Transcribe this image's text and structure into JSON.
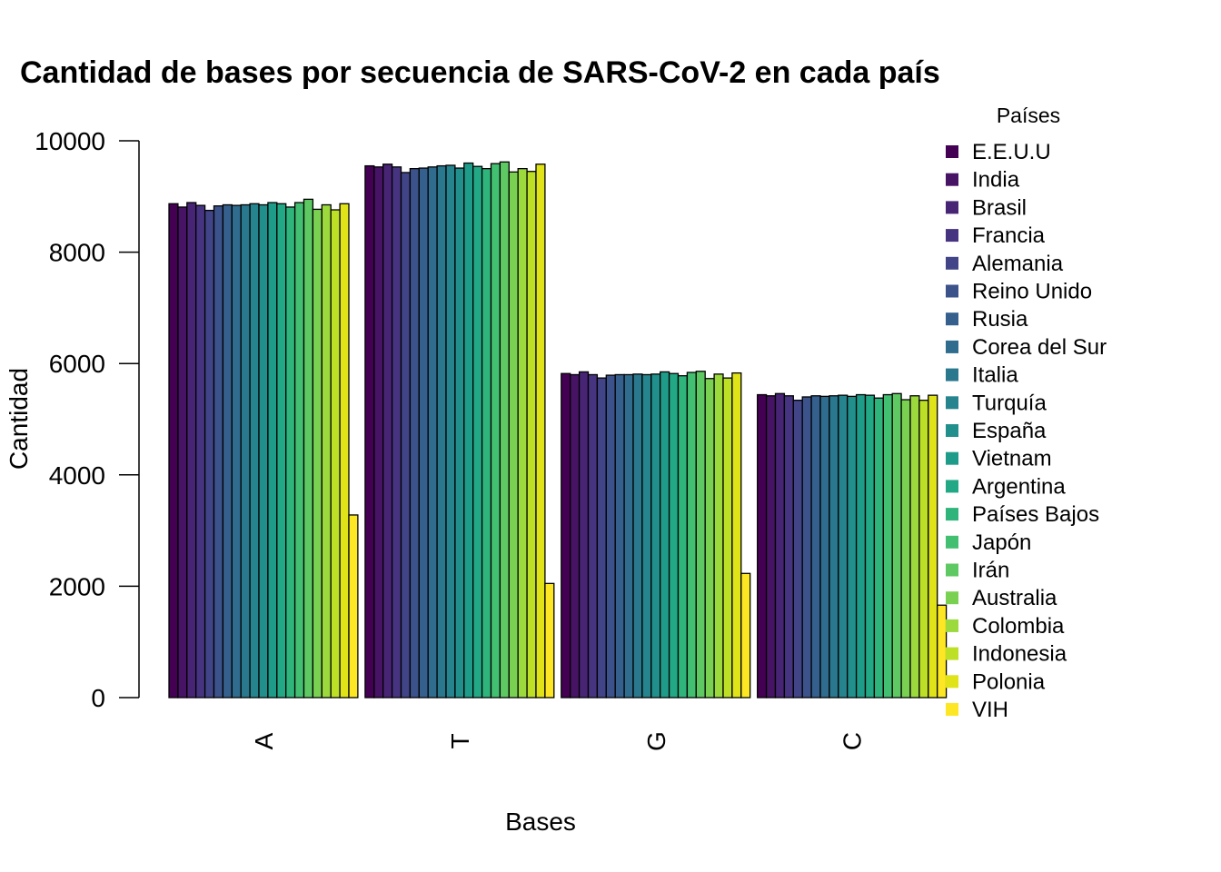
{
  "chart_data": {
    "type": "bar",
    "title": "Cantidad de bases por secuencia de SARS-CoV-2 en cada país",
    "xlabel": "Bases",
    "ylabel": "Cantidad",
    "ylim": [
      0,
      10000
    ],
    "yticks": [
      "0",
      "2000",
      "4000",
      "6000",
      "8000",
      "10000"
    ],
    "categories": [
      "A",
      "T",
      "G",
      "C"
    ],
    "legend_title": "Países",
    "legend_position": "right",
    "grid": false,
    "series": [
      {
        "name": "E.E.U.U",
        "color": "#440154",
        "values": [
          8870,
          9550,
          5820,
          5440
        ]
      },
      {
        "name": "India",
        "color": "#471365",
        "values": [
          8810,
          9530,
          5800,
          5420
        ]
      },
      {
        "name": "Brasil",
        "color": "#482475",
        "values": [
          8890,
          9580,
          5850,
          5460
        ]
      },
      {
        "name": "Francia",
        "color": "#463480",
        "values": [
          8840,
          9530,
          5800,
          5420
        ]
      },
      {
        "name": "Alemania",
        "color": "#414487",
        "values": [
          8750,
          9430,
          5740,
          5340
        ]
      },
      {
        "name": "Reino Unido",
        "color": "#3B528B",
        "values": [
          8830,
          9500,
          5790,
          5400
        ]
      },
      {
        "name": "Rusia",
        "color": "#355F8D",
        "values": [
          8850,
          9510,
          5800,
          5420
        ]
      },
      {
        "name": "Corea del Sur",
        "color": "#2F6C8E",
        "values": [
          8840,
          9530,
          5800,
          5410
        ]
      },
      {
        "name": "Italia",
        "color": "#2A788E",
        "values": [
          8850,
          9550,
          5810,
          5420
        ]
      },
      {
        "name": "Turquía",
        "color": "#25848E",
        "values": [
          8870,
          9560,
          5800,
          5430
        ]
      },
      {
        "name": "España",
        "color": "#21908C",
        "values": [
          8850,
          9510,
          5810,
          5410
        ]
      },
      {
        "name": "Vietnam",
        "color": "#1E9C89",
        "values": [
          8890,
          9600,
          5850,
          5440
        ]
      },
      {
        "name": "Argentina",
        "color": "#22A884",
        "values": [
          8870,
          9540,
          5820,
          5430
        ]
      },
      {
        "name": "Países Bajos",
        "color": "#2FB47C",
        "values": [
          8810,
          9500,
          5780,
          5380
        ]
      },
      {
        "name": "Japón",
        "color": "#43BF71",
        "values": [
          8890,
          9590,
          5840,
          5440
        ]
      },
      {
        "name": "Irán",
        "color": "#5EC962",
        "values": [
          8950,
          9620,
          5860,
          5460
        ]
      },
      {
        "name": "Australia",
        "color": "#7AD151",
        "values": [
          8770,
          9440,
          5730,
          5350
        ]
      },
      {
        "name": "Colombia",
        "color": "#9BD93C",
        "values": [
          8850,
          9500,
          5810,
          5420
        ]
      },
      {
        "name": "Indonesia",
        "color": "#BDDF26",
        "values": [
          8760,
          9450,
          5740,
          5340
        ]
      },
      {
        "name": "Polonia",
        "color": "#DFE318",
        "values": [
          8870,
          9580,
          5830,
          5430
        ]
      },
      {
        "name": "VIH",
        "color": "#FDE725",
        "values": [
          3280,
          2050,
          2230,
          1660
        ]
      }
    ]
  }
}
